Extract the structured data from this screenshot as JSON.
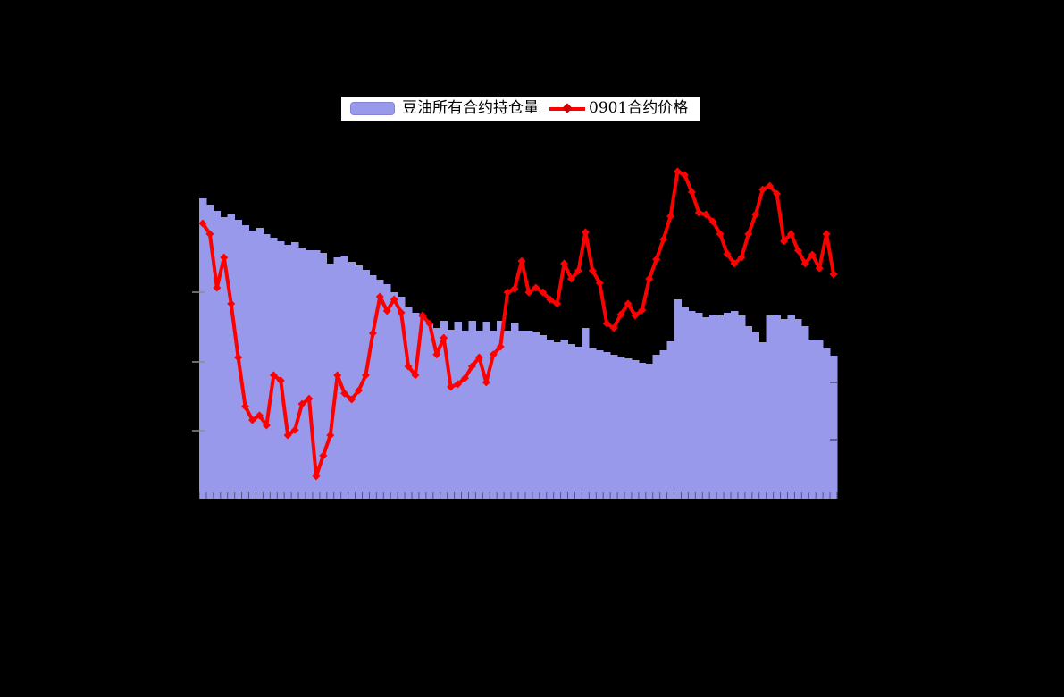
{
  "window": {
    "background_color": "#000000"
  },
  "legend": {
    "background_color": "#ffffff",
    "border_color": "#000000",
    "items": [
      {
        "label": "豆油所有合约持仓量",
        "marker": "bar-swatch",
        "color": "#9999EC"
      },
      {
        "label": "0901合约价格",
        "marker": "line-diamond",
        "color": "#FF0000"
      }
    ]
  },
  "chart_data": {
    "type": "bar+line",
    "title": "",
    "xlabel": "",
    "ylabel": "",
    "x_axis": "90 consecutive trading sessions (category tick per bar; tick labels not visible against black background)",
    "ylim": [
      0,
      100
    ],
    "units": "percent of plot height (numeric axis labels are not visible in the image: black text on black background)",
    "grid": false,
    "legend_position": "top-center",
    "axes_ticks": {
      "left_tick_count_visible": 3,
      "right_tick_count_visible": 2,
      "bottom_ticks": "one per category"
    },
    "series": [
      {
        "name": "豆油所有合约持仓量",
        "type": "bar",
        "color": "#9999EC",
        "gap": 0,
        "values": [
          84.4,
          82.7,
          80.9,
          79.1,
          79.9,
          78.4,
          76.9,
          75.4,
          76.1,
          74.4,
          73.4,
          72.4,
          71.4,
          72.1,
          70.6,
          69.8,
          69.8,
          69.1,
          66.1,
          67.8,
          68.3,
          66.6,
          65.6,
          64.3,
          62.8,
          61.6,
          60.3,
          58.0,
          56.8,
          54.0,
          52.3,
          51.0,
          49.2,
          48.0,
          50.0,
          47.5,
          49.7,
          47.2,
          50.0,
          47.2,
          49.7,
          47.2,
          50.0,
          47.2,
          49.5,
          47.2,
          47.2,
          46.7,
          46.0,
          44.7,
          44.0,
          44.7,
          43.5,
          42.7,
          48.0,
          42.2,
          41.7,
          41.2,
          40.5,
          39.9,
          39.4,
          38.9,
          38.2,
          37.9,
          40.5,
          41.7,
          44.2,
          56.0,
          53.8,
          52.8,
          52.3,
          51.0,
          51.8,
          51.5,
          52.3,
          52.8,
          51.5,
          48.5,
          46.7,
          44.0,
          51.5,
          51.8,
          50.5,
          51.8,
          50.5,
          48.5,
          44.7,
          44.7,
          42.2,
          40.2
        ]
      },
      {
        "name": "0901合约价格",
        "type": "line",
        "color": "#FF0000",
        "marker": "diamond",
        "values": [
          77.4,
          74.4,
          59.3,
          67.8,
          54.8,
          39.7,
          25.9,
          22.1,
          23.4,
          20.6,
          34.7,
          33.2,
          17.8,
          19.3,
          26.6,
          28.1,
          6.3,
          12.1,
          17.8,
          34.7,
          29.6,
          27.9,
          30.4,
          34.7,
          46.5,
          56.8,
          52.8,
          56.0,
          52.3,
          37.2,
          34.7,
          51.5,
          49.2,
          40.5,
          45.2,
          31.4,
          32.2,
          33.9,
          37.2,
          39.7,
          32.7,
          40.5,
          42.7,
          58.0,
          59.0,
          66.8,
          58.0,
          59.3,
          58.0,
          56.0,
          54.8,
          66.1,
          61.8,
          64.1,
          74.9,
          64.1,
          60.6,
          49.2,
          48.0,
          51.8,
          54.8,
          51.5,
          53.0,
          61.8,
          67.3,
          72.9,
          79.4,
          92.0,
          91.0,
          86.2,
          80.4,
          79.9,
          77.9,
          74.4,
          68.8,
          66.1,
          67.8,
          74.4,
          79.9,
          86.9,
          87.9,
          85.7,
          72.4,
          74.4,
          69.8,
          66.1,
          68.6,
          64.8,
          74.4,
          63.1
        ]
      }
    ]
  }
}
